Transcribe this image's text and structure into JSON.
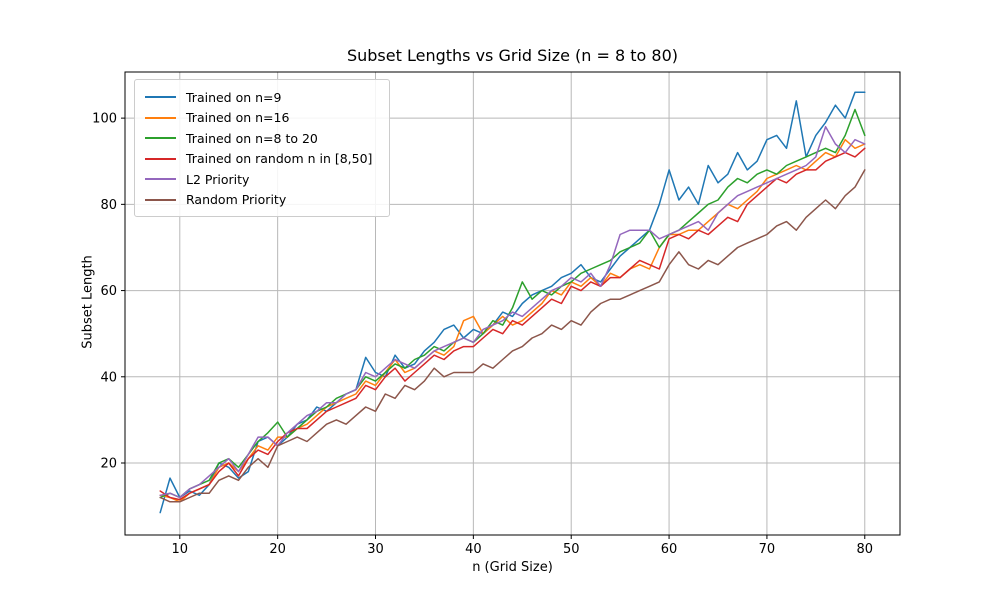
{
  "chart_data": {
    "type": "line",
    "title": "Subset Lengths vs Grid Size (n = 8 to 80)",
    "xlabel": "n (Grid Size)",
    "ylabel": "Subset Length",
    "grid": true,
    "grid_color": "#b8b8b8",
    "legend_position": "upper-left",
    "xlim": [
      4.4,
      83.6
    ],
    "ylim": [
      3.3,
      110.7
    ],
    "xticks": [
      10,
      20,
      30,
      40,
      50,
      60,
      70,
      80
    ],
    "yticks": [
      20,
      40,
      60,
      80,
      100
    ],
    "x": [
      8,
      9,
      10,
      11,
      12,
      13,
      14,
      15,
      16,
      17,
      18,
      19,
      20,
      21,
      22,
      23,
      24,
      25,
      26,
      27,
      28,
      29,
      30,
      31,
      32,
      33,
      34,
      35,
      36,
      37,
      38,
      39,
      40,
      41,
      42,
      43,
      44,
      45,
      46,
      47,
      48,
      49,
      50,
      51,
      52,
      53,
      54,
      55,
      56,
      57,
      58,
      59,
      60,
      61,
      62,
      63,
      64,
      65,
      66,
      67,
      68,
      69,
      70,
      71,
      72,
      73,
      74,
      75,
      76,
      77,
      78,
      79,
      80
    ],
    "series": [
      {
        "name": "Trained on n=9",
        "color": "#1f77b4",
        "values": [
          8.5,
          16.5,
          12,
          13.5,
          12.5,
          15,
          20,
          19,
          16.5,
          18,
          25,
          26,
          24,
          26,
          29,
          30,
          33,
          32,
          34,
          36,
          37,
          44.5,
          41,
          40,
          45,
          42,
          43,
          46,
          48,
          51,
          52,
          49,
          51,
          50,
          52,
          55,
          54,
          57,
          59,
          60,
          61,
          63,
          64,
          66,
          63,
          62,
          65,
          68,
          70,
          72,
          74,
          80,
          88,
          81,
          84,
          80,
          89,
          85,
          87,
          92,
          88,
          90,
          95,
          96,
          93,
          104,
          91,
          96,
          99,
          103,
          100,
          106,
          106
        ]
      },
      {
        "name": "Trained on n=16",
        "color": "#ff7f0e",
        "values": [
          12.5,
          12,
          11,
          13,
          14,
          15,
          19,
          20,
          18,
          21,
          24,
          23,
          26,
          26,
          28,
          29,
          31,
          33,
          34,
          35,
          36,
          39,
          38,
          41,
          44,
          41,
          42,
          44,
          46,
          45,
          47,
          53,
          54,
          50,
          52,
          54,
          52,
          53,
          55,
          57,
          60,
          59,
          62,
          61,
          63,
          61,
          64,
          63,
          65,
          66,
          65,
          70,
          73,
          73,
          74,
          74,
          76,
          78,
          80,
          79,
          81,
          83,
          86,
          87,
          88,
          89,
          88,
          90,
          92,
          91,
          95,
          93,
          94
        ]
      },
      {
        "name": "Trained on n=8 to 20",
        "color": "#2ca02c",
        "values": [
          12,
          13,
          12,
          14,
          15,
          16,
          20,
          21,
          19,
          22,
          25,
          27,
          29.5,
          26,
          28,
          30,
          32,
          33,
          35,
          36,
          37,
          40,
          39,
          41,
          43,
          42,
          44,
          45,
          47,
          46,
          48,
          49,
          48,
          50,
          53,
          52,
          56,
          62,
          58,
          60,
          59,
          61,
          62,
          64,
          65,
          66,
          67,
          69,
          70,
          71,
          74,
          70,
          73,
          74,
          76,
          78,
          80,
          81,
          84,
          86,
          85,
          87,
          88,
          87,
          89,
          90,
          91,
          92,
          93,
          92,
          96,
          102,
          96
        ]
      },
      {
        "name": "Trained on random n in [8,50]",
        "color": "#d62728",
        "values": [
          13.5,
          12,
          11.5,
          13,
          14,
          15,
          18,
          20,
          17,
          21,
          23,
          22,
          25,
          27,
          28,
          28,
          30,
          32,
          33,
          34,
          35,
          38,
          37,
          40,
          42,
          39,
          41,
          43,
          45,
          44,
          46,
          47,
          47,
          49,
          51,
          50,
          53,
          52,
          54,
          56,
          58,
          57,
          61,
          60,
          62,
          61,
          63,
          63,
          65,
          67,
          66,
          65,
          72,
          73,
          72,
          74,
          73,
          75,
          77,
          76,
          80,
          82,
          84,
          86,
          85,
          87,
          88,
          88,
          90,
          91,
          92,
          91,
          93
        ]
      },
      {
        "name": "L2 Priority",
        "color": "#9467bd",
        "values": [
          12.5,
          13,
          12,
          14,
          15,
          17,
          19,
          21,
          18,
          22,
          26,
          26,
          24,
          27,
          29,
          31,
          32,
          34,
          34,
          36,
          37,
          41,
          40,
          42,
          44,
          43,
          42,
          44,
          46,
          47,
          48,
          49,
          48,
          51,
          52,
          53,
          55,
          54,
          56,
          58,
          60,
          61,
          63,
          62,
          64,
          61,
          66,
          73,
          74,
          74,
          74,
          72,
          73,
          74,
          75,
          76,
          74,
          78,
          80,
          82,
          83,
          84,
          85,
          86,
          87,
          88,
          89,
          91,
          98,
          94,
          92,
          95,
          94
        ]
      },
      {
        "name": "Random Priority",
        "color": "#8c564b",
        "values": [
          12,
          11,
          11,
          12,
          13,
          13,
          16,
          17,
          16,
          19,
          21,
          19,
          24,
          25,
          26,
          25,
          27,
          29,
          30,
          29,
          31,
          33,
          32,
          36,
          35,
          38,
          37,
          39,
          42,
          40,
          41,
          41,
          41,
          43,
          42,
          44,
          46,
          47,
          49,
          50,
          52,
          51,
          53,
          52,
          55,
          57,
          58,
          58,
          59,
          60,
          61,
          62,
          66,
          69,
          66,
          65,
          67,
          66,
          68,
          70,
          71,
          72,
          73,
          75,
          76,
          74,
          77,
          79,
          81,
          79,
          82,
          84,
          88
        ]
      }
    ]
  }
}
